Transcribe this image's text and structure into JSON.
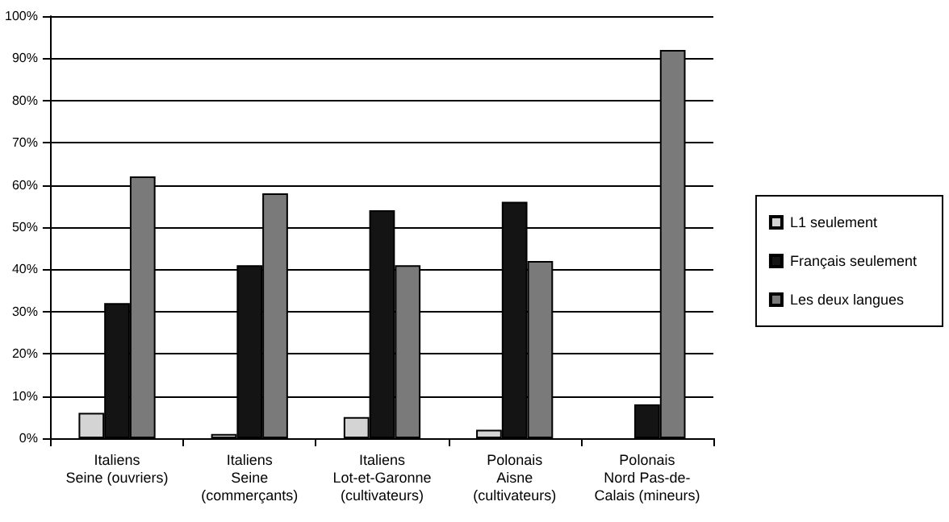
{
  "chart_data": {
    "type": "bar",
    "categories": [
      "Italiens\nSeine (ouvriers)",
      "Italiens\nSeine\n(commerçants)",
      "Italiens\nLot-et-Garonne\n(cultivateurs)",
      "Polonais\nAisne\n(cultivateurs)",
      "Polonais\nNord Pas-de-\nCalais (mineurs)"
    ],
    "series": [
      {
        "name": "L1 seulement",
        "color": "#d4d4d4",
        "values": [
          6,
          1,
          5,
          2,
          0
        ]
      },
      {
        "name": "Français seulement",
        "color": "#141414",
        "values": [
          32,
          41,
          54,
          56,
          8
        ]
      },
      {
        "name": "Les deux langues",
        "color": "#7a7a7a",
        "values": [
          62,
          58,
          41,
          42,
          92
        ]
      }
    ],
    "ylim": [
      0,
      100
    ],
    "yticks": [
      {
        "value": 0,
        "label": "0%"
      },
      {
        "value": 10,
        "label": "10%"
      },
      {
        "value": 20,
        "label": "20%"
      },
      {
        "value": 30,
        "label": "30%"
      },
      {
        "value": 40,
        "label": "40%"
      },
      {
        "value": 50,
        "label": "50%"
      },
      {
        "value": 60,
        "label": "60%"
      },
      {
        "value": 70,
        "label": "70%"
      },
      {
        "value": 80,
        "label": "80%"
      },
      {
        "value": 90,
        "label": "90%"
      },
      {
        "value": 100,
        "label": "100%"
      }
    ],
    "grid": "y",
    "legend": "right"
  }
}
